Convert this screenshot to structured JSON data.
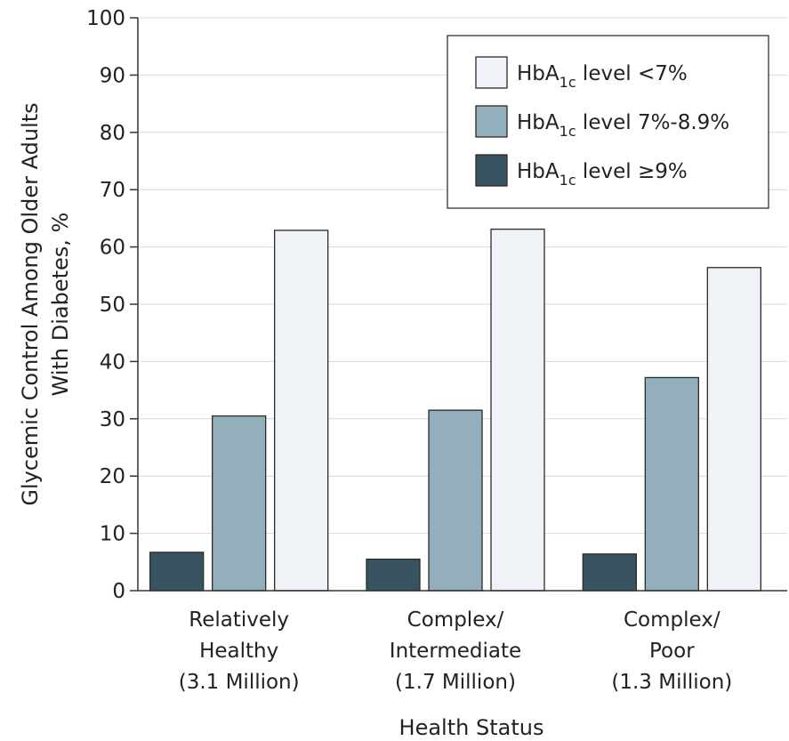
{
  "chart_data": {
    "type": "bar",
    "title": "",
    "xlabel": "Health Status",
    "ylabel_lines": [
      "Glycemic Control Among Older Adults",
      "With Diabetes, %"
    ],
    "ylim": [
      0,
      100
    ],
    "yticks": [
      0,
      10,
      20,
      30,
      40,
      50,
      60,
      70,
      80,
      90,
      100
    ],
    "grid": true,
    "legend_position": "top-right",
    "categories": [
      [
        "Relatively",
        "Healthy",
        "(3.1 Million)"
      ],
      [
        "Complex/",
        "Intermediate",
        "(1.7 Million)"
      ],
      [
        "Complex/",
        "Poor",
        "(1.3 Million)"
      ]
    ],
    "series": [
      {
        "name": "HbA1c level ≥9%",
        "legend_main": "HbA",
        "legend_sub": "1c",
        "legend_rest": " level ≥9%",
        "color": "#37535f",
        "values": [
          6.7,
          5.5,
          6.4
        ]
      },
      {
        "name": "HbA1c level 7%-8.9%",
        "legend_main": "HbA",
        "legend_sub": "1c",
        "legend_rest": " level 7%-8.9%",
        "color": "#93afbb",
        "values": [
          30.5,
          31.5,
          37.2
        ]
      },
      {
        "name": "HbA1c level <7%",
        "legend_main": "HbA",
        "legend_sub": "1c",
        "legend_rest": " level <7%",
        "color": "#eff2f6",
        "values": [
          62.9,
          63.1,
          56.4
        ]
      }
    ],
    "legend_order": [
      2,
      1,
      0
    ]
  }
}
